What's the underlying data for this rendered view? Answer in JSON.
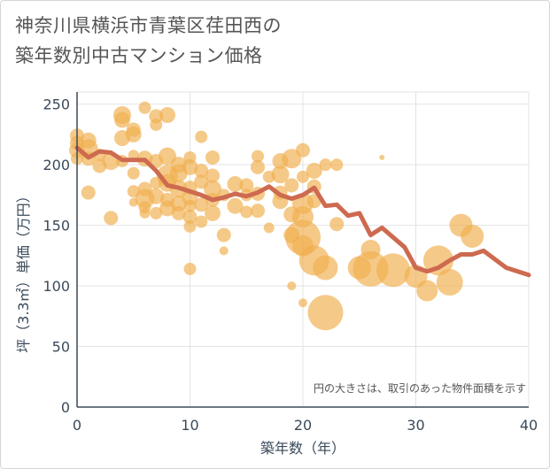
{
  "title": {
    "line1": "神奈川県横浜市青葉区荏田西の",
    "line2": "築年数別中古マンション価格"
  },
  "colors": {
    "bubble": "#f0b050",
    "line": "#cd6a50",
    "grid": "#e3e3e3",
    "axis": "#3a4a5a"
  },
  "chart_data": {
    "type": "scatter",
    "xlabel": "築年数（年）",
    "ylabel": "坪（3.3㎡）単価（万円）",
    "note": "円の大きさは、取引のあった物件面積を示す",
    "xlim": [
      0,
      40
    ],
    "ylim": [
      0,
      260
    ],
    "xticks": [
      "0",
      "10",
      "20",
      "30",
      "40"
    ],
    "yticks": [
      "0",
      "50",
      "100",
      "150",
      "200",
      "250"
    ],
    "grid": true,
    "series": [
      {
        "type": "line",
        "x": [
          0,
          1,
          2,
          3,
          4,
          5,
          6,
          7,
          8,
          9,
          10,
          11,
          12,
          13,
          14,
          15,
          16,
          17,
          18,
          19,
          20,
          21,
          22,
          23,
          24,
          25,
          26,
          27,
          28,
          29,
          30,
          31,
          32,
          33,
          34,
          35,
          36,
          37,
          38,
          39,
          40
        ],
        "y": [
          214,
          206,
          211,
          210,
          204,
          204,
          204,
          195,
          183,
          181,
          178,
          175,
          171,
          173,
          176,
          174,
          177,
          182,
          175,
          172,
          175,
          181,
          166,
          167,
          158,
          160,
          142,
          148,
          140,
          132,
          115,
          112,
          115,
          121,
          126,
          126,
          129,
          122,
          115,
          112,
          109
        ]
      },
      {
        "type": "bubble",
        "points": [
          {
            "x": 0,
            "y": 224,
            "s": 8
          },
          {
            "x": 0,
            "y": 218,
            "s": 8
          },
          {
            "x": 0,
            "y": 212,
            "s": 9
          },
          {
            "x": 0,
            "y": 205,
            "s": 7
          },
          {
            "x": 1,
            "y": 220,
            "s": 9
          },
          {
            "x": 1,
            "y": 213,
            "s": 11
          },
          {
            "x": 1,
            "y": 205,
            "s": 8
          },
          {
            "x": 1,
            "y": 177,
            "s": 8
          },
          {
            "x": 2,
            "y": 208,
            "s": 7
          },
          {
            "x": 2,
            "y": 199,
            "s": 8
          },
          {
            "x": 3,
            "y": 203,
            "s": 10
          },
          {
            "x": 3,
            "y": 156,
            "s": 8
          },
          {
            "x": 4,
            "y": 241,
            "s": 10
          },
          {
            "x": 4,
            "y": 237,
            "s": 9
          },
          {
            "x": 4,
            "y": 222,
            "s": 9
          },
          {
            "x": 4,
            "y": 203,
            "s": 7
          },
          {
            "x": 5,
            "y": 229,
            "s": 8
          },
          {
            "x": 5,
            "y": 225,
            "s": 9
          },
          {
            "x": 5,
            "y": 208,
            "s": 6
          },
          {
            "x": 5,
            "y": 193,
            "s": 7
          },
          {
            "x": 5,
            "y": 178,
            "s": 7
          },
          {
            "x": 5,
            "y": 169,
            "s": 5
          },
          {
            "x": 6,
            "y": 247,
            "s": 7
          },
          {
            "x": 6,
            "y": 205,
            "s": 9
          },
          {
            "x": 6,
            "y": 180,
            "s": 8
          },
          {
            "x": 6,
            "y": 172,
            "s": 11
          },
          {
            "x": 6,
            "y": 165,
            "s": 7
          },
          {
            "x": 6,
            "y": 160,
            "s": 6
          },
          {
            "x": 7,
            "y": 240,
            "s": 8
          },
          {
            "x": 7,
            "y": 233,
            "s": 7
          },
          {
            "x": 7,
            "y": 203,
            "s": 8
          },
          {
            "x": 7,
            "y": 185,
            "s": 7
          },
          {
            "x": 7,
            "y": 174,
            "s": 9
          },
          {
            "x": 7,
            "y": 160,
            "s": 7
          },
          {
            "x": 8,
            "y": 241,
            "s": 9
          },
          {
            "x": 8,
            "y": 207,
            "s": 10
          },
          {
            "x": 8,
            "y": 191,
            "s": 12
          },
          {
            "x": 8,
            "y": 185,
            "s": 10
          },
          {
            "x": 8,
            "y": 171,
            "s": 8
          },
          {
            "x": 8,
            "y": 164,
            "s": 9
          },
          {
            "x": 9,
            "y": 200,
            "s": 9
          },
          {
            "x": 9,
            "y": 193,
            "s": 10
          },
          {
            "x": 9,
            "y": 180,
            "s": 10
          },
          {
            "x": 9,
            "y": 168,
            "s": 9
          },
          {
            "x": 9,
            "y": 160,
            "s": 8
          },
          {
            "x": 10,
            "y": 206,
            "s": 7
          },
          {
            "x": 10,
            "y": 198,
            "s": 9
          },
          {
            "x": 10,
            "y": 181,
            "s": 8
          },
          {
            "x": 10,
            "y": 173,
            "s": 9
          },
          {
            "x": 10,
            "y": 166,
            "s": 7
          },
          {
            "x": 10,
            "y": 157,
            "s": 8
          },
          {
            "x": 10,
            "y": 149,
            "s": 7
          },
          {
            "x": 10,
            "y": 114,
            "s": 7
          },
          {
            "x": 11,
            "y": 223,
            "s": 7
          },
          {
            "x": 11,
            "y": 195,
            "s": 8
          },
          {
            "x": 11,
            "y": 186,
            "s": 8
          },
          {
            "x": 11,
            "y": 167,
            "s": 8
          },
          {
            "x": 11,
            "y": 153,
            "s": 7
          },
          {
            "x": 12,
            "y": 206,
            "s": 8
          },
          {
            "x": 12,
            "y": 191,
            "s": 8
          },
          {
            "x": 12,
            "y": 180,
            "s": 10
          },
          {
            "x": 12,
            "y": 171,
            "s": 8
          },
          {
            "x": 12,
            "y": 160,
            "s": 9
          },
          {
            "x": 13,
            "y": 175,
            "s": 7
          },
          {
            "x": 13,
            "y": 142,
            "s": 8
          },
          {
            "x": 13,
            "y": 129,
            "s": 5
          },
          {
            "x": 14,
            "y": 184,
            "s": 9
          },
          {
            "x": 14,
            "y": 166,
            "s": 9
          },
          {
            "x": 15,
            "y": 183,
            "s": 8
          },
          {
            "x": 15,
            "y": 175,
            "s": 7
          },
          {
            "x": 15,
            "y": 161,
            "s": 7
          },
          {
            "x": 16,
            "y": 207,
            "s": 7
          },
          {
            "x": 16,
            "y": 198,
            "s": 8
          },
          {
            "x": 16,
            "y": 176,
            "s": 8
          },
          {
            "x": 16,
            "y": 162,
            "s": 8
          },
          {
            "x": 17,
            "y": 190,
            "s": 7
          },
          {
            "x": 17,
            "y": 148,
            "s": 6
          },
          {
            "x": 18,
            "y": 203,
            "s": 9
          },
          {
            "x": 18,
            "y": 192,
            "s": 10
          },
          {
            "x": 18,
            "y": 177,
            "s": 8
          },
          {
            "x": 18,
            "y": 170,
            "s": 9
          },
          {
            "x": 19,
            "y": 205,
            "s": 11
          },
          {
            "x": 19,
            "y": 183,
            "s": 8
          },
          {
            "x": 19,
            "y": 159,
            "s": 9
          },
          {
            "x": 19,
            "y": 142,
            "s": 9
          },
          {
            "x": 19,
            "y": 100,
            "s": 5
          },
          {
            "x": 20,
            "y": 212,
            "s": 8
          },
          {
            "x": 20,
            "y": 190,
            "s": 7
          },
          {
            "x": 20,
            "y": 168,
            "s": 12
          },
          {
            "x": 20,
            "y": 157,
            "s": 12
          },
          {
            "x": 20,
            "y": 140,
            "s": 20
          },
          {
            "x": 20,
            "y": 133,
            "s": 12
          },
          {
            "x": 20,
            "y": 86,
            "s": 5
          },
          {
            "x": 21,
            "y": 195,
            "s": 9
          },
          {
            "x": 21,
            "y": 182,
            "s": 8
          },
          {
            "x": 21,
            "y": 170,
            "s": 8
          },
          {
            "x": 21,
            "y": 121,
            "s": 17
          },
          {
            "x": 22,
            "y": 200,
            "s": 7
          },
          {
            "x": 22,
            "y": 115,
            "s": 14
          },
          {
            "x": 22,
            "y": 78,
            "s": 20
          },
          {
            "x": 23,
            "y": 200,
            "s": 7
          },
          {
            "x": 23,
            "y": 151,
            "s": 8
          },
          {
            "x": 25,
            "y": 115,
            "s": 13
          },
          {
            "x": 26,
            "y": 130,
            "s": 11
          },
          {
            "x": 26,
            "y": 114,
            "s": 20
          },
          {
            "x": 27,
            "y": 206,
            "s": 3
          },
          {
            "x": 28,
            "y": 113,
            "s": 19
          },
          {
            "x": 30,
            "y": 108,
            "s": 13
          },
          {
            "x": 31,
            "y": 96,
            "s": 12
          },
          {
            "x": 32,
            "y": 121,
            "s": 17
          },
          {
            "x": 33,
            "y": 103,
            "s": 15
          },
          {
            "x": 34,
            "y": 150,
            "s": 13
          },
          {
            "x": 35,
            "y": 141,
            "s": 13
          }
        ]
      }
    ]
  }
}
